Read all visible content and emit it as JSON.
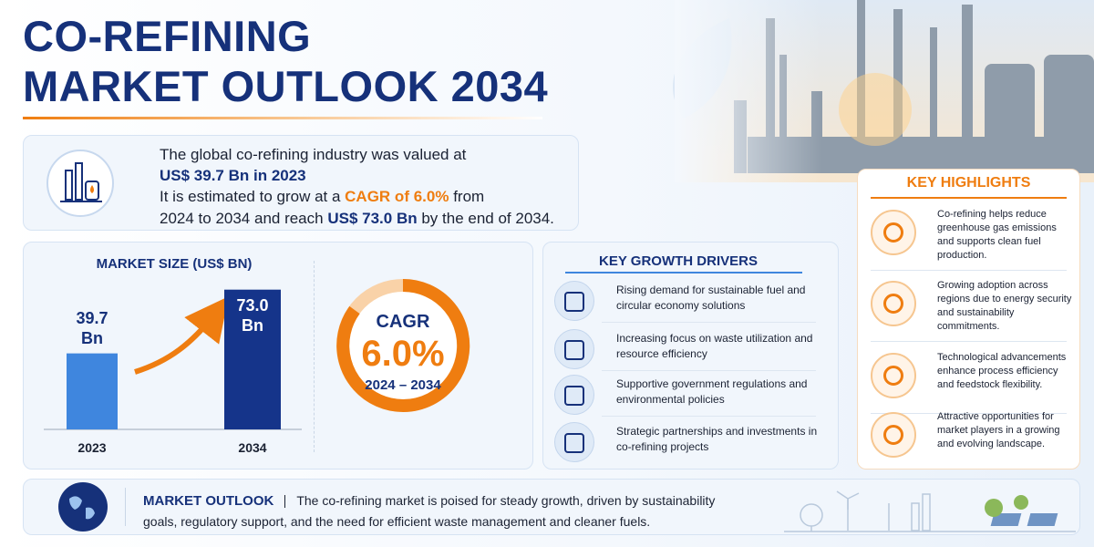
{
  "header": {
    "title_line1": "CO-REFINING",
    "title_line2": "MARKET OUTLOOK 2034"
  },
  "intro": {
    "line1": "The global co-refining industry was valued at",
    "line2": "US$ 39.7 Bn in 2023",
    "line3_a": "It is estimated to grow at a",
    "line3_b": "CAGR of 6.0%",
    "line3_c": "from",
    "line4_a": "2024 to 2034 and reach",
    "line4_b": "US$ 73.0 Bn",
    "line4_c": "by the end of 2034."
  },
  "chart_data": {
    "type": "bar",
    "title": "MARKET SIZE (US$ BN)",
    "categories": [
      "2023",
      "2034"
    ],
    "values": [
      39.7,
      73.0
    ],
    "value_labels": [
      "39.7\nBn",
      "73.0\nBn"
    ],
    "colors": [
      "#3f86de",
      "#15348a"
    ]
  },
  "cagr": {
    "label": "CAGR",
    "value": "6.0%",
    "period": "2024 – 2034"
  },
  "growth_drivers": {
    "title": "KEY GROWTH DRIVERS",
    "items": [
      "Rising demand for sustainable fuel and circular economy solutions",
      "Increasing focus on waste utilization and resource efficiency",
      "Supportive government regulations and environmental policies",
      "Strategic partnerships and investments in co-refining projects"
    ]
  },
  "highlights": {
    "title": "KEY HIGHLIGHTS",
    "items": [
      "Co-refining helps reduce greenhouse gas emissions and supports clean fuel production.",
      "Growing adoption across regions due to energy security and sustainability commitments.",
      "Technological advancements enhance process efficiency and feedstock flexibility.",
      "Attractive opportunities for market players in a growing and evolving landscape."
    ]
  },
  "outlook": {
    "title": "MARKET OUTLOOK",
    "text": "The co-refining market is poised for steady growth, driven by sustainability goals, regulatory support, and the need for efficient waste management and cleaner fuels."
  }
}
